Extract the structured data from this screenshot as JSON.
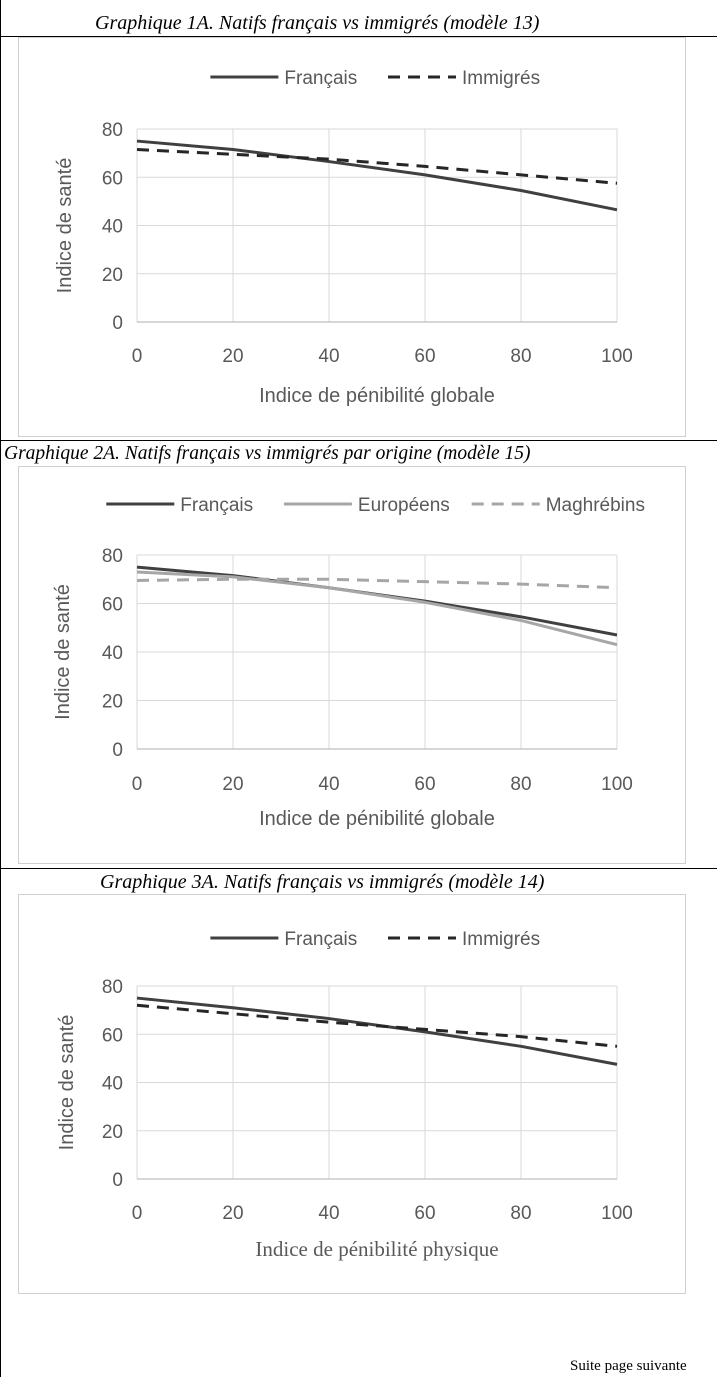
{
  "page": {
    "captions": [
      "Graphique 1A.  Natifs français vs immigrés (modèle 13)",
      "Graphique 2A. Natifs français vs immigrés par origine (modèle 15)",
      "Graphique 3A.  Natifs français vs immigrés (modèle 14)"
    ],
    "footer": "Suite page suivante"
  },
  "chart_data": [
    {
      "type": "line",
      "title": "Graphique 1A.  Natifs français vs immigrés (modèle 13)",
      "xlabel": "Indice de pénibilité globale",
      "ylabel": "Indice de santé",
      "xlim": [
        0,
        100
      ],
      "ylim": [
        0,
        80
      ],
      "xticks": [
        "0",
        "20",
        "40",
        "60",
        "80",
        "100"
      ],
      "yticks": [
        "0",
        "20",
        "40",
        "60",
        "80"
      ],
      "grid": true,
      "legend": "top",
      "series": [
        {
          "name": "Français",
          "style": "solid",
          "color": "#404040",
          "x": [
            0,
            20,
            40,
            60,
            80,
            100
          ],
          "values": [
            75,
            71.5,
            66.5,
            61,
            54.5,
            46.5
          ]
        },
        {
          "name": "Immigrés",
          "style": "dashed",
          "color": "#262626",
          "x": [
            0,
            20,
            40,
            60,
            80,
            100
          ],
          "values": [
            71.5,
            69.5,
            67.5,
            64.5,
            61,
            57.5
          ]
        }
      ]
    },
    {
      "type": "line",
      "title": "Graphique 2A. Natifs français vs immigrés par origine (modèle 15)",
      "xlabel": "Indice de pénibilité globale",
      "ylabel": "Indice de santé",
      "xlim": [
        0,
        100
      ],
      "ylim": [
        0,
        80
      ],
      "xticks": [
        "0",
        "20",
        "40",
        "60",
        "80",
        "100"
      ],
      "yticks": [
        "0",
        "20",
        "40",
        "60",
        "80"
      ],
      "grid": true,
      "legend": "top",
      "series": [
        {
          "name": "Français",
          "style": "solid",
          "color": "#404040",
          "x": [
            0,
            20,
            40,
            60,
            80,
            100
          ],
          "values": [
            75,
            71.5,
            66.5,
            61,
            54.5,
            47
          ]
        },
        {
          "name": "Européens",
          "style": "solid",
          "color": "#a6a6a6",
          "x": [
            0,
            20,
            40,
            60,
            80,
            100
          ],
          "values": [
            73,
            71,
            66.5,
            60.5,
            53,
            43
          ]
        },
        {
          "name": "Maghrébins",
          "style": "dashed",
          "color": "#a6a6a6",
          "x": [
            0,
            20,
            40,
            60,
            80,
            100
          ],
          "values": [
            69.5,
            70,
            70,
            69,
            68,
            66.5
          ]
        }
      ]
    },
    {
      "type": "line",
      "title": "Graphique 3A.  Natifs français vs immigrés (modèle 14)",
      "xlabel": "Indice de pénibilité physique",
      "ylabel": "Indice de santé",
      "xlim": [
        0,
        100
      ],
      "ylim": [
        0,
        80
      ],
      "xticks": [
        "0",
        "20",
        "40",
        "60",
        "80",
        "100"
      ],
      "yticks": [
        "0",
        "20",
        "40",
        "60",
        "80"
      ],
      "grid": true,
      "legend": "top",
      "series": [
        {
          "name": "Français",
          "style": "solid",
          "color": "#404040",
          "x": [
            0,
            20,
            40,
            60,
            80,
            100
          ],
          "values": [
            75,
            71,
            66.5,
            61,
            55,
            47.5
          ]
        },
        {
          "name": "Immigrés",
          "style": "dashed",
          "color": "#262626",
          "x": [
            0,
            20,
            40,
            60,
            80,
            100
          ],
          "values": [
            72,
            68.5,
            65,
            62,
            59,
            55
          ]
        }
      ]
    }
  ]
}
